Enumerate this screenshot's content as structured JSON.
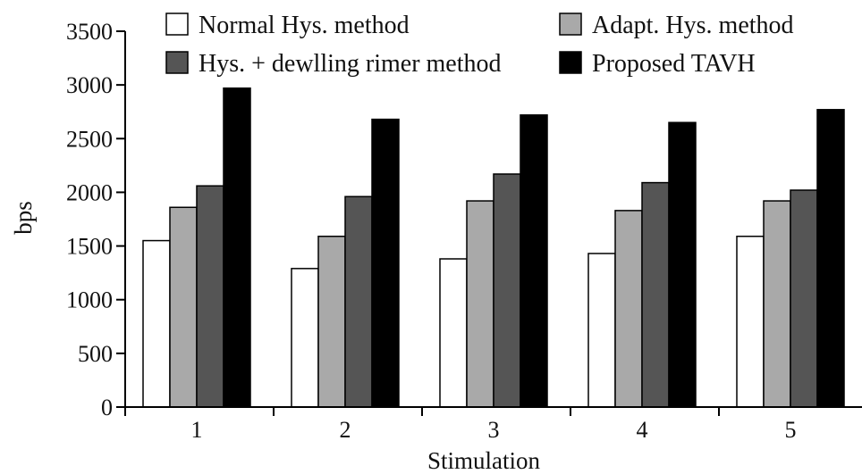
{
  "chart_data": {
    "type": "bar",
    "xlabel": "Stimulation",
    "ylabel": "bps",
    "categories": [
      "1",
      "2",
      "3",
      "4",
      "5"
    ],
    "ylim": [
      0,
      3500
    ],
    "yticks": [
      "0",
      "500",
      "1000",
      "1500",
      "2000",
      "2500",
      "3000",
      "3500"
    ],
    "grid": false,
    "legend_position": "top",
    "series": [
      {
        "name": "Normal Hys. method",
        "color": "#ffffff",
        "values": [
          1550,
          1290,
          1380,
          1430,
          1590
        ]
      },
      {
        "name": "Adapt. Hys. method",
        "color": "#a9a9a9",
        "values": [
          1860,
          1590,
          1920,
          1830,
          1920
        ]
      },
      {
        "name": "Hys. + dewlling rimer method",
        "color": "#555555",
        "values": [
          2060,
          1960,
          2170,
          2090,
          2020
        ]
      },
      {
        "name": "Proposed TAVH",
        "color": "#000000",
        "values": [
          2970,
          2680,
          2720,
          2650,
          2770
        ]
      }
    ]
  }
}
